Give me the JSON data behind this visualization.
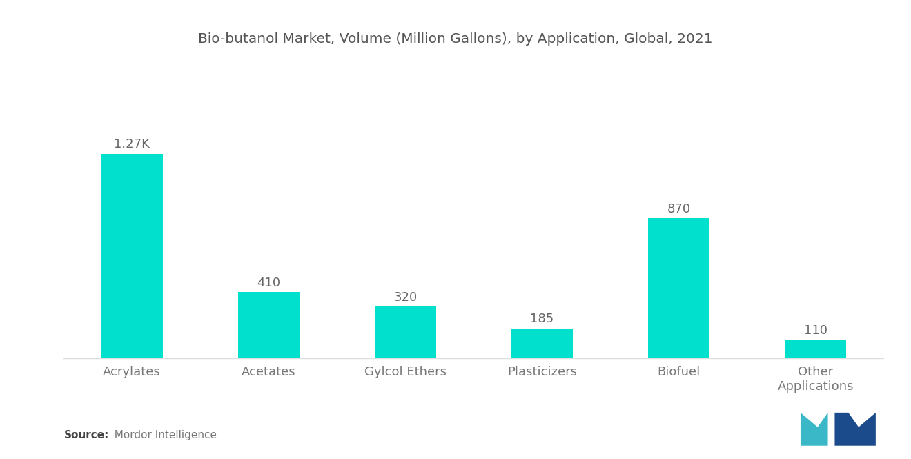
{
  "title": "Bio-butanol Market, Volume (Million Gallons), by Application, Global, 2021",
  "categories": [
    "Acrylates",
    "Acetates",
    "Gylcol Ethers",
    "Plasticizers",
    "Biofuel",
    "Other\nApplications"
  ],
  "values": [
    1270,
    410,
    320,
    185,
    870,
    110
  ],
  "bar_labels": [
    "1.27K",
    "410",
    "320",
    "185",
    "870",
    "110"
  ],
  "bar_color": "#00E0CC",
  "background_color": "#ffffff",
  "ylim": [
    0,
    1600
  ],
  "title_fontsize": 14.5,
  "label_fontsize": 13,
  "tick_fontsize": 13,
  "source_bold": "Source:",
  "source_normal": "  Mordor Intelligence",
  "bar_width": 0.45,
  "title_color": "#555555",
  "tick_color": "#777777",
  "label_color": "#666666"
}
